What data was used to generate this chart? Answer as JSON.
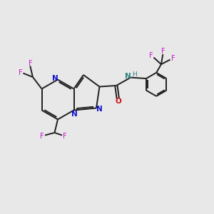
{
  "bg_color": "#e8e8e8",
  "bond_color": "#202020",
  "N_color": "#1010cc",
  "O_color": "#cc1010",
  "F_color": "#cc10cc",
  "NH_color": "#308080",
  "lw": 1.4,
  "dg": 0.07,
  "figsize": [
    3.0,
    3.0
  ],
  "dpi": 100,
  "xlim": [
    0,
    10
  ],
  "ylim": [
    0,
    10
  ]
}
